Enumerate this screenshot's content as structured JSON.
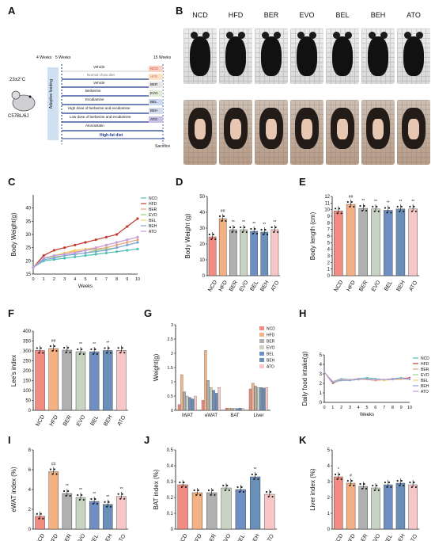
{
  "panels": {
    "A": "A",
    "B": "B",
    "C": "C",
    "D": "D",
    "E": "E",
    "F": "F",
    "G": "G",
    "H": "H",
    "I": "I",
    "J": "J",
    "K": "K"
  },
  "groups": [
    "NCD",
    "HFD",
    "BER",
    "EVO",
    "BEL",
    "BEH",
    "ATO"
  ],
  "colors": {
    "NCD": "#f28b82",
    "HFD": "#f4b183",
    "BER": "#b0b0b0",
    "EVO": "#c9d3c4",
    "BEL": "#6f8fc3",
    "BEH": "#6a8fb8",
    "ATO": "#f7c6c6",
    "ncd_line": "#4bbfb3",
    "hfd_line": "#c0392b"
  },
  "schematic": {
    "temp": "23±2°C",
    "strain": "C57BL/6J",
    "w4": "4 Weeks",
    "w5": "5 Weeks",
    "w15": "15 Weeks",
    "adapt": "Adaptive feeding",
    "rows": [
      {
        "label": "Vehicle",
        "tag": "NCD"
      },
      {
        "label": "Normal chow diet",
        "tag": ""
      },
      {
        "label": "Vehicle",
        "tag": "HFD"
      },
      {
        "label": "Berberine",
        "tag": "BER"
      },
      {
        "label": "Evodiamine",
        "tag": "EVO"
      },
      {
        "label": "High dose of berberine and evodiamine",
        "tag": "BEL"
      },
      {
        "label": "Low dose of berberine and evodiamine",
        "tag": "BEH"
      },
      {
        "label": "Atorvastatin",
        "tag": "ATO"
      }
    ],
    "hfd_label": "High-fat diet",
    "sacrifice": "Sacrifice"
  },
  "photos_labels": [
    "NCD",
    "HFD",
    "BER",
    "EVO",
    "BEL",
    "BEH",
    "ATO"
  ],
  "chart_data": [
    {
      "panel": "C",
      "type": "line",
      "xlabel": "Weeks",
      "ylabel": "Body Weight(g)",
      "x": [
        0,
        1,
        2,
        3,
        4,
        5,
        6,
        7,
        8,
        9,
        10
      ],
      "ylim": [
        15,
        45
      ],
      "yticks": [
        15,
        20,
        25,
        30,
        35,
        40
      ],
      "series": [
        {
          "name": "NCD",
          "values": [
            17.5,
            20,
            20.5,
            21,
            21.5,
            22,
            22.5,
            23,
            23.5,
            24,
            24.5
          ]
        },
        {
          "name": "HFD",
          "values": [
            17.5,
            22,
            24,
            25,
            26,
            27,
            28,
            29,
            30,
            33,
            36
          ]
        },
        {
          "name": "BER",
          "values": [
            17.5,
            21,
            22,
            23,
            23.5,
            24,
            24.5,
            25,
            26,
            27,
            28
          ]
        },
        {
          "name": "EVO",
          "values": [
            17.5,
            21,
            21.5,
            22,
            22.5,
            23,
            24,
            24.5,
            25,
            26,
            27
          ]
        },
        {
          "name": "BEL",
          "values": [
            17.5,
            21,
            22,
            23,
            24,
            24.5,
            25,
            26,
            27,
            28,
            29
          ]
        },
        {
          "name": "BEH",
          "values": [
            17.5,
            20.5,
            21,
            22,
            22.5,
            23,
            23.5,
            24,
            25,
            26,
            27
          ]
        },
        {
          "name": "ATO",
          "values": [
            17.5,
            21,
            22,
            22.5,
            23,
            24,
            25,
            26,
            27,
            28,
            29
          ]
        }
      ]
    },
    {
      "panel": "D",
      "type": "bar",
      "ylabel": "Body Weight (g)",
      "categories": [
        "NCD",
        "HFD",
        "BER",
        "EVO",
        "BEL",
        "BEH",
        "ATO"
      ],
      "values": [
        24.5,
        36,
        29,
        29,
        28,
        27.5,
        29
      ],
      "ylim": [
        0,
        50
      ],
      "yticks": [
        0,
        10,
        20,
        30,
        40,
        50
      ],
      "marks": [
        "",
        "##",
        "**",
        "**",
        "**",
        "**",
        "**"
      ]
    },
    {
      "panel": "E",
      "type": "bar",
      "ylabel": "Body length (cm)",
      "categories": [
        "NCD",
        "HFD",
        "BER",
        "EVO",
        "BEL",
        "BEH",
        "ATO"
      ],
      "values": [
        9.8,
        10.8,
        10.2,
        10.1,
        9.9,
        10.1,
        10.1
      ],
      "ylim": [
        0,
        12
      ],
      "yticks": [
        0,
        1,
        2,
        3,
        4,
        5,
        6,
        7,
        8,
        9,
        10,
        11,
        12
      ],
      "marks": [
        "",
        "##",
        "**",
        "**",
        "**",
        "**",
        "**"
      ]
    },
    {
      "panel": "F",
      "type": "bar",
      "ylabel": "Lee's index",
      "categories": [
        "NCD",
        "HFD",
        "BER",
        "EVO",
        "BEL",
        "BEH",
        "ATO"
      ],
      "values": [
        302,
        312,
        304,
        296,
        296,
        302,
        303
      ],
      "ylim": [
        0,
        400
      ],
      "yticks": [
        0,
        50,
        100,
        150,
        200,
        250,
        300,
        350,
        400
      ],
      "marks": [
        "",
        "##",
        "",
        "**",
        "**",
        "**",
        ""
      ]
    },
    {
      "panel": "G",
      "type": "bar",
      "ylabel": "Weight(g)",
      "categories": [
        "iWAT",
        "eWAT",
        "BAT",
        "Liver"
      ],
      "ylim": [
        0,
        3.0
      ],
      "yticks": [
        0,
        0.5,
        1.0,
        1.5,
        2.0,
        2.5,
        3.0
      ],
      "series": [
        {
          "name": "NCD",
          "values": [
            0.2,
            0.35,
            0.08,
            0.75
          ]
        },
        {
          "name": "HFD",
          "values": [
            1.25,
            2.1,
            0.08,
            0.95
          ]
        },
        {
          "name": "BER",
          "values": [
            0.65,
            1.05,
            0.07,
            0.85
          ]
        },
        {
          "name": "EVO",
          "values": [
            0.5,
            0.8,
            0.07,
            0.8
          ]
        },
        {
          "name": "BEL",
          "values": [
            0.45,
            0.7,
            0.06,
            0.8
          ]
        },
        {
          "name": "BEH",
          "values": [
            0.4,
            0.6,
            0.08,
            0.78
          ]
        },
        {
          "name": "ATO",
          "values": [
            0.5,
            0.8,
            0.06,
            0.8
          ]
        }
      ]
    },
    {
      "panel": "H",
      "type": "line",
      "xlabel": "Weeks",
      "ylabel": "Daily food intake(g)",
      "x": [
        0,
        1,
        2,
        3,
        4,
        5,
        6,
        7,
        8,
        9,
        10
      ],
      "ylim": [
        0,
        5
      ],
      "yticks": [
        0,
        1,
        2,
        3,
        4,
        5
      ],
      "series": [
        {
          "name": "NCD",
          "values": [
            3.2,
            2.2,
            2.5,
            2.4,
            2.5,
            2.6,
            2.5,
            2.4,
            2.5,
            2.6,
            2.5
          ]
        },
        {
          "name": "HFD",
          "values": [
            3.2,
            2.0,
            2.4,
            2.3,
            2.5,
            2.4,
            2.3,
            2.4,
            2.5,
            2.5,
            2.6
          ]
        },
        {
          "name": "BER",
          "values": [
            3.2,
            2.1,
            2.3,
            2.3,
            2.4,
            2.4,
            2.3,
            2.4,
            2.4,
            2.5,
            2.5
          ]
        },
        {
          "name": "EVO",
          "values": [
            3.2,
            2.1,
            2.3,
            2.4,
            2.4,
            2.5,
            2.4,
            2.4,
            2.4,
            2.5,
            2.5
          ]
        },
        {
          "name": "BEL",
          "values": [
            3.2,
            2.2,
            2.4,
            2.3,
            2.4,
            2.4,
            2.4,
            2.3,
            2.4,
            2.4,
            2.5
          ]
        },
        {
          "name": "BEH",
          "values": [
            3.2,
            2.1,
            2.3,
            2.3,
            2.4,
            2.5,
            2.4,
            2.4,
            2.4,
            2.5,
            2.4
          ]
        },
        {
          "name": "ATO",
          "values": [
            3.2,
            2.2,
            2.4,
            2.4,
            2.5,
            2.4,
            2.4,
            2.4,
            2.5,
            2.5,
            2.5
          ]
        }
      ]
    },
    {
      "panel": "I",
      "type": "bar",
      "ylabel": "eWAT index (%)",
      "categories": [
        "NCD",
        "HFD",
        "BER",
        "EVO",
        "BEL",
        "BEH",
        "ATO"
      ],
      "values": [
        1.3,
        5.8,
        3.6,
        3.2,
        2.8,
        2.5,
        3.3
      ],
      "ylim": [
        0,
        8
      ],
      "yticks": [
        0,
        2,
        4,
        6,
        8
      ],
      "marks": [
        "",
        "##",
        "**",
        "**",
        "**",
        "**",
        "**"
      ]
    },
    {
      "panel": "J",
      "type": "bar",
      "ylabel": "BAT index (%)",
      "categories": [
        "NCD",
        "HFD",
        "BER",
        "EVO",
        "BEL",
        "BEH",
        "ATO"
      ],
      "values": [
        0.28,
        0.23,
        0.23,
        0.26,
        0.25,
        0.33,
        0.22
      ],
      "ylim": [
        0,
        0.5
      ],
      "yticks": [
        0,
        0.1,
        0.2,
        0.3,
        0.4,
        0.5
      ],
      "marks": [
        "",
        "",
        "",
        "",
        "",
        "**",
        ""
      ]
    },
    {
      "panel": "K",
      "type": "bar",
      "ylabel": "Liver index (%)",
      "categories": [
        "NCD",
        "HFD",
        "BER",
        "EVO",
        "BEL",
        "BEH",
        "ATO"
      ],
      "values": [
        3.3,
        2.9,
        2.7,
        2.6,
        2.8,
        2.9,
        2.8
      ],
      "ylim": [
        0,
        5
      ],
      "yticks": [
        0,
        1,
        2,
        3,
        4,
        5
      ],
      "marks": [
        "*",
        "#",
        "",
        "",
        "",
        "",
        ""
      ]
    }
  ]
}
